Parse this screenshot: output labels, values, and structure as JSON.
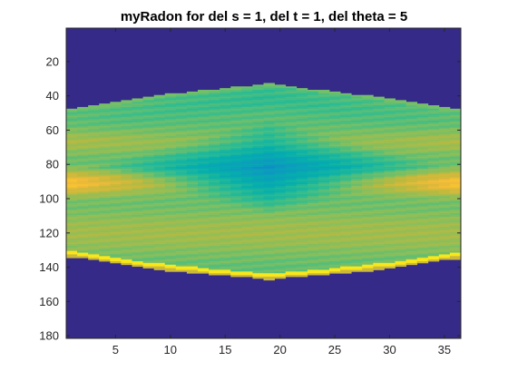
{
  "chart_data": {
    "type": "heatmap",
    "title": "myRadon for del s = 1, del t = 1, del theta = 5",
    "xlabel": "",
    "ylabel": "",
    "x_ticks": [
      5,
      10,
      15,
      20,
      25,
      30,
      35
    ],
    "y_ticks": [
      20,
      40,
      60,
      80,
      100,
      120,
      140,
      160,
      180
    ],
    "xlim": [
      0.5,
      36.5
    ],
    "ylim": [
      0.5,
      181.5
    ],
    "y_reversed": true,
    "grid": false,
    "colormap": "parula",
    "columns": 36,
    "rows": 181,
    "background_color": "#352a87",
    "support": {
      "theta_index": [
        1,
        10,
        19,
        28,
        36
      ],
      "top_row": [
        48,
        39,
        33,
        40,
        48
      ],
      "bottom_row": [
        134,
        142,
        147,
        142,
        135
      ]
    },
    "features": {
      "boundary_edge_color": "#f9fb0e",
      "bright_band_rows": [
        86,
        96
      ],
      "bright_band_value": "high at theta 1 and 36",
      "central_diamond_center": [
        19,
        80
      ],
      "central_diamond_value": "low (blue-green)"
    }
  }
}
